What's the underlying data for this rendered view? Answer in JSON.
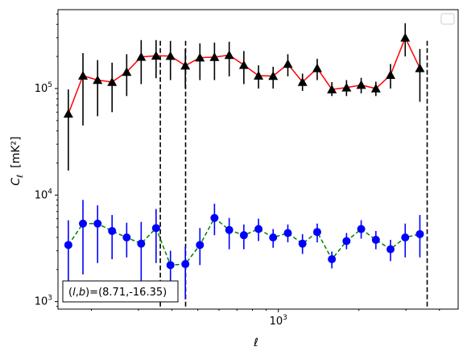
{
  "chart_data": {
    "type": "scatter",
    "title": "",
    "xlabel": "ℓ",
    "ylabel_main": "C",
    "ylabel_sub": "ℓ",
    "ylabel_unit": "[mK²]",
    "xscale": "log",
    "yscale": "log",
    "xlim": [
      150,
      4700
    ],
    "ylim": [
      850,
      550000
    ],
    "x_ticks": [
      {
        "value": 1000,
        "base": "10",
        "exp": "3"
      }
    ],
    "y_ticks": [
      {
        "value": 1000,
        "base": "10",
        "exp": "3"
      },
      {
        "value": 10000,
        "base": "10",
        "exp": "4"
      },
      {
        "value": 100000,
        "base": "10",
        "exp": "5"
      }
    ],
    "legend": {
      "placement": "top-right",
      "entries": []
    },
    "annotation": "(l,b)=(8.71,-16.35)",
    "annotation_parts": {
      "open": "(",
      "l": "l",
      "comma": ",",
      "b": "b",
      "rest": ")=(8.71,-16.35)"
    },
    "vlines": [
      {
        "x": 362,
        "y_from": 900,
        "y_to": 280000
      },
      {
        "x": 450,
        "y_from": 900,
        "y_to": 280000
      },
      {
        "x": 3600,
        "y_from": 900,
        "y_to": 280000
      }
    ],
    "series": [
      {
        "marker": "triangle",
        "color": "#000000",
        "line_color": "#ff0000",
        "line_style": "solid",
        "points": [
          {
            "x": 164,
            "y": 58000,
            "lo": 17000,
            "hi": 98000
          },
          {
            "x": 186,
            "y": 132000,
            "lo": 45000,
            "hi": 215000
          },
          {
            "x": 211,
            "y": 120000,
            "lo": 55000,
            "hi": 185000
          },
          {
            "x": 239,
            "y": 115000,
            "lo": 60000,
            "hi": 175000
          },
          {
            "x": 271,
            "y": 143000,
            "lo": 85000,
            "hi": 210000
          },
          {
            "x": 307,
            "y": 198000,
            "lo": 110000,
            "hi": 285000
          },
          {
            "x": 349,
            "y": 203000,
            "lo": 125000,
            "hi": 285000
          },
          {
            "x": 395,
            "y": 202000,
            "lo": 120000,
            "hi": 280000
          },
          {
            "x": 449,
            "y": 164000,
            "lo": 100000,
            "hi": 235000
          },
          {
            "x": 509,
            "y": 195000,
            "lo": 120000,
            "hi": 265000
          },
          {
            "x": 577,
            "y": 197000,
            "lo": 120000,
            "hi": 270000
          },
          {
            "x": 655,
            "y": 206000,
            "lo": 130000,
            "hi": 275000
          },
          {
            "x": 743,
            "y": 166000,
            "lo": 110000,
            "hi": 225000
          },
          {
            "x": 843,
            "y": 132000,
            "lo": 100000,
            "hi": 165000
          },
          {
            "x": 956,
            "y": 131000,
            "lo": 100000,
            "hi": 160000
          },
          {
            "x": 1085,
            "y": 170000,
            "lo": 130000,
            "hi": 210000
          },
          {
            "x": 1231,
            "y": 115000,
            "lo": 95000,
            "hi": 138000
          },
          {
            "x": 1397,
            "y": 155000,
            "lo": 120000,
            "hi": 190000
          },
          {
            "x": 1585,
            "y": 98000,
            "lo": 85000,
            "hi": 115000
          },
          {
            "x": 1798,
            "y": 102000,
            "lo": 85000,
            "hi": 120000
          },
          {
            "x": 2040,
            "y": 108000,
            "lo": 90000,
            "hi": 126000
          },
          {
            "x": 2315,
            "y": 100000,
            "lo": 85000,
            "hi": 116000
          },
          {
            "x": 2626,
            "y": 134000,
            "lo": 100000,
            "hi": 170000
          },
          {
            "x": 2980,
            "y": 300000,
            "lo": 200000,
            "hi": 410000
          },
          {
            "x": 3381,
            "y": 155000,
            "lo": 75000,
            "hi": 235000
          }
        ]
      },
      {
        "marker": "circle",
        "color": "#0000ff",
        "line_color": "#008000",
        "line_style": "dashed",
        "points": [
          {
            "x": 164,
            "y": 3400,
            "lo": 1200,
            "hi": 5800
          },
          {
            "x": 186,
            "y": 5400,
            "lo": 1800,
            "hi": 9000
          },
          {
            "x": 211,
            "y": 5400,
            "lo": 2300,
            "hi": 8000
          },
          {
            "x": 239,
            "y": 4600,
            "lo": 2500,
            "hi": 6500
          },
          {
            "x": 271,
            "y": 4000,
            "lo": 2600,
            "hi": 5500
          },
          {
            "x": 307,
            "y": 3500,
            "lo": 1400,
            "hi": 5600
          },
          {
            "x": 349,
            "y": 4900,
            "lo": 2300,
            "hi": 7400
          },
          {
            "x": 395,
            "y": 2200,
            "lo": 1400,
            "hi": 3000
          },
          {
            "x": 449,
            "y": 2250,
            "lo": 1050,
            "hi": 3300
          },
          {
            "x": 509,
            "y": 3400,
            "lo": 2200,
            "hi": 4900
          },
          {
            "x": 577,
            "y": 6100,
            "lo": 4200,
            "hi": 8300
          },
          {
            "x": 655,
            "y": 4700,
            "lo": 3100,
            "hi": 6100
          },
          {
            "x": 743,
            "y": 4200,
            "lo": 3100,
            "hi": 5300
          },
          {
            "x": 843,
            "y": 4800,
            "lo": 3700,
            "hi": 6000
          },
          {
            "x": 956,
            "y": 4000,
            "lo": 3200,
            "hi": 4800
          },
          {
            "x": 1085,
            "y": 4400,
            "lo": 3600,
            "hi": 5300
          },
          {
            "x": 1231,
            "y": 3500,
            "lo": 2800,
            "hi": 4300
          },
          {
            "x": 1397,
            "y": 4500,
            "lo": 3600,
            "hi": 5400
          },
          {
            "x": 1585,
            "y": 2500,
            "lo": 2050,
            "hi": 2950
          },
          {
            "x": 1798,
            "y": 3700,
            "lo": 3100,
            "hi": 4400
          },
          {
            "x": 2040,
            "y": 4800,
            "lo": 3900,
            "hi": 5800
          },
          {
            "x": 2315,
            "y": 3800,
            "lo": 3100,
            "hi": 4600
          },
          {
            "x": 2626,
            "y": 3100,
            "lo": 2400,
            "hi": 3800
          },
          {
            "x": 2980,
            "y": 4000,
            "lo": 2600,
            "hi": 5400
          },
          {
            "x": 3381,
            "y": 4300,
            "lo": 2600,
            "hi": 6500
          }
        ]
      }
    ]
  }
}
